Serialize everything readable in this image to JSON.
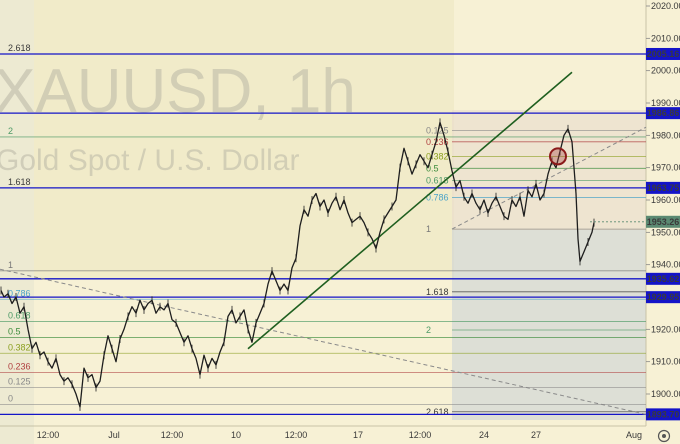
{
  "chart_data": {
    "type": "candlestick",
    "symbol_watermark": "XAUUSD, 1h",
    "description_watermark": "Gold Spot / U.S. Dollar",
    "y_axis": {
      "min": 1890,
      "max": 2025,
      "ticks": [
        "2020.00",
        "2010.00",
        "2000.00",
        "1990.00",
        "1980.00",
        "1970.00",
        "1960.00",
        "1950.00",
        "1940.00",
        "1930.00",
        "1920.00",
        "1910.00",
        "1900.00"
      ]
    },
    "x_axis": {
      "ticks": [
        "12:00",
        "Jul",
        "12:00",
        "10",
        "12:00",
        "17",
        "12:00",
        "24",
        "27",
        "Aug"
      ]
    },
    "levels": [
      {
        "label": "2005.16",
        "value": 2005.16,
        "color": "#1414c8"
      },
      {
        "label": "1986.86",
        "value": 1986.86,
        "color": "#1414c8"
      },
      {
        "label": "1963.75",
        "value": 1963.75,
        "color": "#1414c8"
      },
      {
        "label": "1935.62",
        "value": 1935.62,
        "color": "#1414c8"
      },
      {
        "label": "1929.95",
        "value": 1929.95,
        "color": "#1414c8"
      },
      {
        "label": "1893.70",
        "value": 1893.7,
        "color": "#1414c8"
      }
    ],
    "current_price": {
      "label": "1953.26",
      "value": 1953.26,
      "color": "#5b8a72"
    },
    "fib_left": [
      {
        "label": "2.618",
        "value": 2005.2,
        "color": "#3a3a3a"
      },
      {
        "label": "2",
        "value": 1979.5,
        "color": "#4d9a66"
      },
      {
        "label": "1.618",
        "value": 1963.7,
        "color": "#3a3a3a"
      },
      {
        "label": "1",
        "value": 1938.1,
        "color": "#777777"
      },
      {
        "label": "0.786",
        "value": 1929.3,
        "color": "#4aa3c8"
      },
      {
        "label": "0.618",
        "value": 1922.4,
        "color": "#4d9a66"
      },
      {
        "label": "0.5",
        "value": 1917.5,
        "color": "#3c8c3c"
      },
      {
        "label": "0.382",
        "value": 1912.6,
        "color": "#8ca020"
      },
      {
        "label": "0.236",
        "value": 1906.6,
        "color": "#b04040"
      },
      {
        "label": "0.125",
        "value": 1902.0,
        "color": "#888888"
      },
      {
        "label": "0",
        "value": 1896.8,
        "color": "#888888"
      }
    ],
    "fib_right": [
      {
        "label": "0.125",
        "value": 1981.5,
        "color": "#888888"
      },
      {
        "label": "0.236",
        "value": 1978.0,
        "color": "#b04040"
      },
      {
        "label": "0.382",
        "value": 1973.5,
        "color": "#8ca020"
      },
      {
        "label": "0.5",
        "value": 1969.8,
        "color": "#3c8c3c"
      },
      {
        "label": "0.618",
        "value": 1966.0,
        "color": "#4d9a66"
      },
      {
        "label": "0.786",
        "value": 1960.8,
        "color": "#4aa3c8"
      },
      {
        "label": "1",
        "value": 1951.0,
        "color": "#777777"
      },
      {
        "label": "1.618",
        "value": 1931.6,
        "color": "#3a3a3a"
      },
      {
        "label": "2",
        "value": 1919.8,
        "color": "#4d9a66"
      },
      {
        "label": "2.618",
        "value": 1894.5,
        "color": "#3a3a3a"
      }
    ],
    "price_path": [
      [
        1,
        1932
      ],
      [
        4,
        1930
      ],
      [
        8,
        1931
      ],
      [
        12,
        1928
      ],
      [
        16,
        1930
      ],
      [
        20,
        1925
      ],
      [
        24,
        1927
      ],
      [
        28,
        1920
      ],
      [
        32,
        1914
      ],
      [
        36,
        1916
      ],
      [
        40,
        1912
      ],
      [
        44,
        1913
      ],
      [
        48,
        1910
      ],
      [
        52,
        1908
      ],
      [
        56,
        1911
      ],
      [
        60,
        1906
      ],
      [
        64,
        1904
      ],
      [
        68,
        1905
      ],
      [
        72,
        1903
      ],
      [
        76,
        1900
      ],
      [
        80,
        1896
      ],
      [
        84,
        1908
      ],
      [
        88,
        1905
      ],
      [
        92,
        1906
      ],
      [
        96,
        1902
      ],
      [
        100,
        1904
      ],
      [
        104,
        1912
      ],
      [
        108,
        1918
      ],
      [
        112,
        1914
      ],
      [
        116,
        1910
      ],
      [
        120,
        1917
      ],
      [
        124,
        1920
      ],
      [
        128,
        1924
      ],
      [
        132,
        1927
      ],
      [
        136,
        1925
      ],
      [
        140,
        1929
      ],
      [
        144,
        1926
      ],
      [
        148,
        1928
      ],
      [
        152,
        1929
      ],
      [
        156,
        1925
      ],
      [
        160,
        1927
      ],
      [
        164,
        1926
      ],
      [
        168,
        1928
      ],
      [
        172,
        1923
      ],
      [
        176,
        1922
      ],
      [
        180,
        1919
      ],
      [
        184,
        1916
      ],
      [
        188,
        1918
      ],
      [
        192,
        1914
      ],
      [
        196,
        1911
      ],
      [
        200,
        1906
      ],
      [
        204,
        1912
      ],
      [
        208,
        1908
      ],
      [
        212,
        1911
      ],
      [
        216,
        1909
      ],
      [
        220,
        1913
      ],
      [
        224,
        1916
      ],
      [
        228,
        1924
      ],
      [
        232,
        1926
      ],
      [
        236,
        1922
      ],
      [
        240,
        1924
      ],
      [
        244,
        1926
      ],
      [
        248,
        1920
      ],
      [
        252,
        1916
      ],
      [
        256,
        1922
      ],
      [
        260,
        1925
      ],
      [
        264,
        1928
      ],
      [
        268,
        1934
      ],
      [
        272,
        1938
      ],
      [
        276,
        1935
      ],
      [
        280,
        1932
      ],
      [
        284,
        1934
      ],
      [
        288,
        1932
      ],
      [
        292,
        1939
      ],
      [
        296,
        1942
      ],
      [
        300,
        1952
      ],
      [
        304,
        1957
      ],
      [
        308,
        1955
      ],
      [
        312,
        1960
      ],
      [
        316,
        1962
      ],
      [
        320,
        1958
      ],
      [
        324,
        1960
      ],
      [
        328,
        1956
      ],
      [
        332,
        1959
      ],
      [
        336,
        1961
      ],
      [
        340,
        1957
      ],
      [
        344,
        1960
      ],
      [
        348,
        1956
      ],
      [
        352,
        1953
      ],
      [
        356,
        1954
      ],
      [
        360,
        1955
      ],
      [
        364,
        1953
      ],
      [
        368,
        1950
      ],
      [
        372,
        1948
      ],
      [
        376,
        1945
      ],
      [
        380,
        1950
      ],
      [
        384,
        1954
      ],
      [
        388,
        1956
      ],
      [
        392,
        1958
      ],
      [
        396,
        1960
      ],
      [
        400,
        1970
      ],
      [
        404,
        1976
      ],
      [
        408,
        1972
      ],
      [
        412,
        1968
      ],
      [
        416,
        1971
      ],
      [
        420,
        1974
      ],
      [
        424,
        1972
      ],
      [
        428,
        1970
      ],
      [
        432,
        1974
      ],
      [
        436,
        1978
      ],
      [
        440,
        1984
      ],
      [
        444,
        1980
      ],
      [
        448,
        1975
      ],
      [
        452,
        1969
      ],
      [
        456,
        1964
      ],
      [
        460,
        1966
      ],
      [
        464,
        1961
      ],
      [
        468,
        1959
      ],
      [
        472,
        1962
      ],
      [
        476,
        1959
      ],
      [
        480,
        1957
      ],
      [
        484,
        1960
      ],
      [
        488,
        1956
      ],
      [
        492,
        1959
      ],
      [
        496,
        1961
      ],
      [
        500,
        1958
      ],
      [
        504,
        1955
      ],
      [
        508,
        1954
      ],
      [
        512,
        1960
      ],
      [
        516,
        1958
      ],
      [
        520,
        1961
      ],
      [
        524,
        1955
      ],
      [
        528,
        1963
      ],
      [
        532,
        1961
      ],
      [
        536,
        1965
      ],
      [
        540,
        1960
      ],
      [
        544,
        1962
      ],
      [
        548,
        1968
      ],
      [
        552,
        1972
      ],
      [
        556,
        1970
      ],
      [
        560,
        1975
      ],
      [
        564,
        1980
      ],
      [
        568,
        1982
      ],
      [
        572,
        1978
      ],
      [
        576,
        1962
      ],
      [
        578,
        1948
      ],
      [
        580,
        1941
      ],
      [
        584,
        1944
      ],
      [
        588,
        1947
      ],
      [
        592,
        1950
      ],
      [
        594,
        1953
      ]
    ],
    "trendlines": [
      {
        "name": "uptrend",
        "x1": 248,
        "v1": 1914.0,
        "x2": 572,
        "v2": 1999.5,
        "color": "#1f5f1f",
        "width": 1.6
      },
      {
        "name": "dashed-down",
        "x1": 0,
        "v1": 1938.6,
        "x2": 646,
        "v2": 1893.7,
        "color": "#8a8a8a",
        "width": 1,
        "dash": "4,3"
      },
      {
        "name": "dashed-up",
        "x1": 452,
        "v1": 1951.0,
        "x2": 646,
        "v2": 1982.5,
        "color": "#8a8a8a",
        "width": 1,
        "dash": "4,3"
      }
    ],
    "circle_marker": {
      "x": 558,
      "value": 1973.5,
      "color": "#8b1a1a"
    }
  },
  "ui": {
    "settings_icon": "gear-icon"
  }
}
